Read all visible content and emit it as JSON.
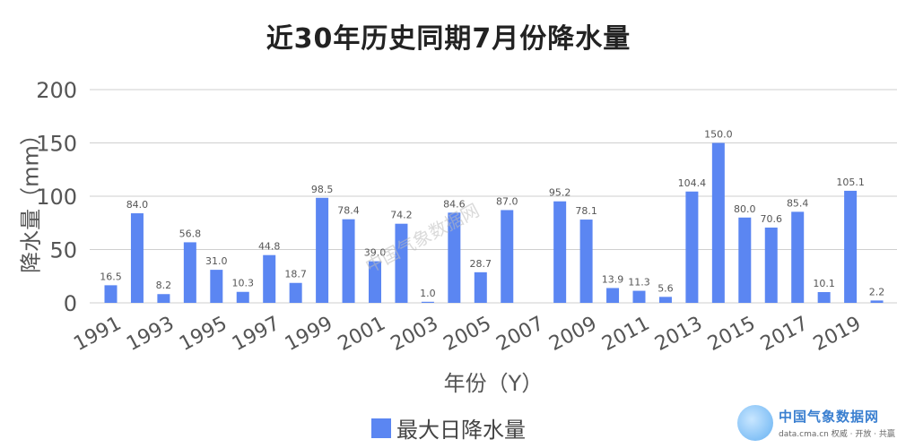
{
  "chart_data": {
    "type": "bar",
    "title": "近30年历史同期7月份降水量",
    "ylabel": "降水量（mm）",
    "xlabel": "年份（Y）",
    "ylim": [
      0,
      200
    ],
    "yticks": [
      0,
      50,
      100,
      150,
      200
    ],
    "grid": true,
    "legend_position": "bottom-center",
    "categories": [
      "1991",
      "1992",
      "1993",
      "1994",
      "1995",
      "1996",
      "1997",
      "1998",
      "1999",
      "2000",
      "2001",
      "2002",
      "2003",
      "2004",
      "2005",
      "2006",
      "2007",
      "2008",
      "2009",
      "2010",
      "2011",
      "2012",
      "2013",
      "2014",
      "2015",
      "2016",
      "2017",
      "2018",
      "2019",
      "2020"
    ],
    "xtick_labels": [
      "1991",
      "1993",
      "1995",
      "1997",
      "1999",
      "2001",
      "2003",
      "2005",
      "2007",
      "2009",
      "2011",
      "2013",
      "2015",
      "2017",
      "2019"
    ],
    "series": [
      {
        "name": "最大日降水量",
        "color": "#5b86f2",
        "values": [
          16.5,
          84.0,
          8.2,
          56.8,
          31.0,
          10.3,
          44.8,
          18.7,
          98.5,
          78.4,
          39.0,
          74.2,
          1.0,
          84.6,
          28.7,
          87.0,
          null,
          95.2,
          78.1,
          13.9,
          11.3,
          5.6,
          104.4,
          150.0,
          80.0,
          70.6,
          85.4,
          10.1,
          105.1,
          2.2
        ],
        "labels": [
          "16.5",
          "84.0",
          "8.2",
          "56.8",
          "31.0",
          "10.3",
          "44.8",
          "18.7",
          "98.5",
          "78.4",
          "39.0",
          "74.2",
          "1.0",
          "84.6",
          "28.7",
          "87.0",
          "",
          "95.2",
          "78.1",
          "13.9",
          "11.3",
          "5.6",
          "104.4",
          "150.0",
          "80.0",
          "70.6",
          "85.4",
          "10.1",
          "105.1",
          "2.2"
        ]
      }
    ]
  },
  "watermark": {
    "center_text": "中国气象数据网",
    "logo_name": "中国气象数据网",
    "logo_sub": "data.cma.cn 权威 · 开放 · 共赢"
  }
}
